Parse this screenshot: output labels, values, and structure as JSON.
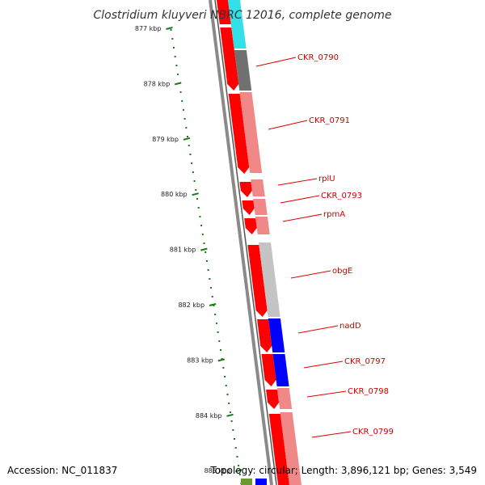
{
  "title": "Clostridium kluyveri NBRC 12016, complete genome",
  "footer": {
    "accession": "Accession: NC_011837",
    "summary": "Topology: circular; Length: 3,896,121 bp; Genes: 3,549"
  },
  "ruler": {
    "labels": [
      "877 kbp",
      "878 kbp",
      "879 kbp",
      "880 kbp",
      "881 kbp",
      "882 kbp",
      "883 kbp",
      "884 kbp",
      "885 kbp"
    ],
    "tick_color": "#1a7a1a"
  },
  "colors": {
    "backbone": "#777777",
    "label_text": "#cc0000",
    "callout_line": "#dd0000",
    "forward_strand": "#ff0000",
    "cyan": "#33e0e8",
    "gray_dark": "#707070",
    "pink": "#f08888",
    "gray_light": "#c4c4c4",
    "blue": "#0000ff",
    "green": "#6c9a30"
  },
  "track_a": [
    {
      "start": 0,
      "end": 30,
      "color": "forward_strand",
      "arrow": false
    },
    {
      "start": 34,
      "end": 112,
      "color": "forward_strand",
      "arrow": true
    },
    {
      "start": 116,
      "end": 215,
      "color": "forward_strand",
      "arrow": true
    },
    {
      "start": 225,
      "end": 244,
      "color": "forward_strand",
      "arrow": true
    },
    {
      "start": 248,
      "end": 266,
      "color": "forward_strand",
      "arrow": true
    },
    {
      "start": 270,
      "end": 290,
      "color": "forward_strand",
      "arrow": true
    },
    {
      "start": 303,
      "end": 392,
      "color": "forward_strand",
      "arrow": true
    },
    {
      "start": 395,
      "end": 436,
      "color": "forward_strand",
      "arrow": true
    },
    {
      "start": 438,
      "end": 478,
      "color": "forward_strand",
      "arrow": true
    },
    {
      "start": 482,
      "end": 506,
      "color": "forward_strand",
      "arrow": true
    },
    {
      "start": 512,
      "end": 600,
      "color": "forward_strand",
      "arrow": false
    }
  ],
  "track_b": [
    {
      "start": 0,
      "end": 60,
      "color": "cyan"
    },
    {
      "start": 62,
      "end": 112,
      "color": "gray_dark"
    },
    {
      "start": 114,
      "end": 214,
      "color": "pink"
    },
    {
      "start": 222,
      "end": 243,
      "color": "pink"
    },
    {
      "start": 246,
      "end": 266,
      "color": "pink"
    },
    {
      "start": 268,
      "end": 290,
      "color": "pink"
    },
    {
      "start": 300,
      "end": 392,
      "color": "gray_light"
    },
    {
      "start": 394,
      "end": 436,
      "color": "blue"
    },
    {
      "start": 438,
      "end": 478,
      "color": "blue"
    },
    {
      "start": 480,
      "end": 506,
      "color": "pink"
    },
    {
      "start": 510,
      "end": 600,
      "color": "pink"
    }
  ],
  "bottom_strip": [
    {
      "color": "green"
    },
    {
      "color": "blue"
    }
  ],
  "genes": [
    {
      "name": "CKR_0790"
    },
    {
      "name": "CKR_0791"
    },
    {
      "name": "rplU"
    },
    {
      "name": "CKR_0793"
    },
    {
      "name": "rpmA"
    },
    {
      "name": "obgE"
    },
    {
      "name": "nadD"
    },
    {
      "name": "CKR_0797"
    },
    {
      "name": "CKR_0798"
    },
    {
      "name": "CKR_0799"
    }
  ]
}
